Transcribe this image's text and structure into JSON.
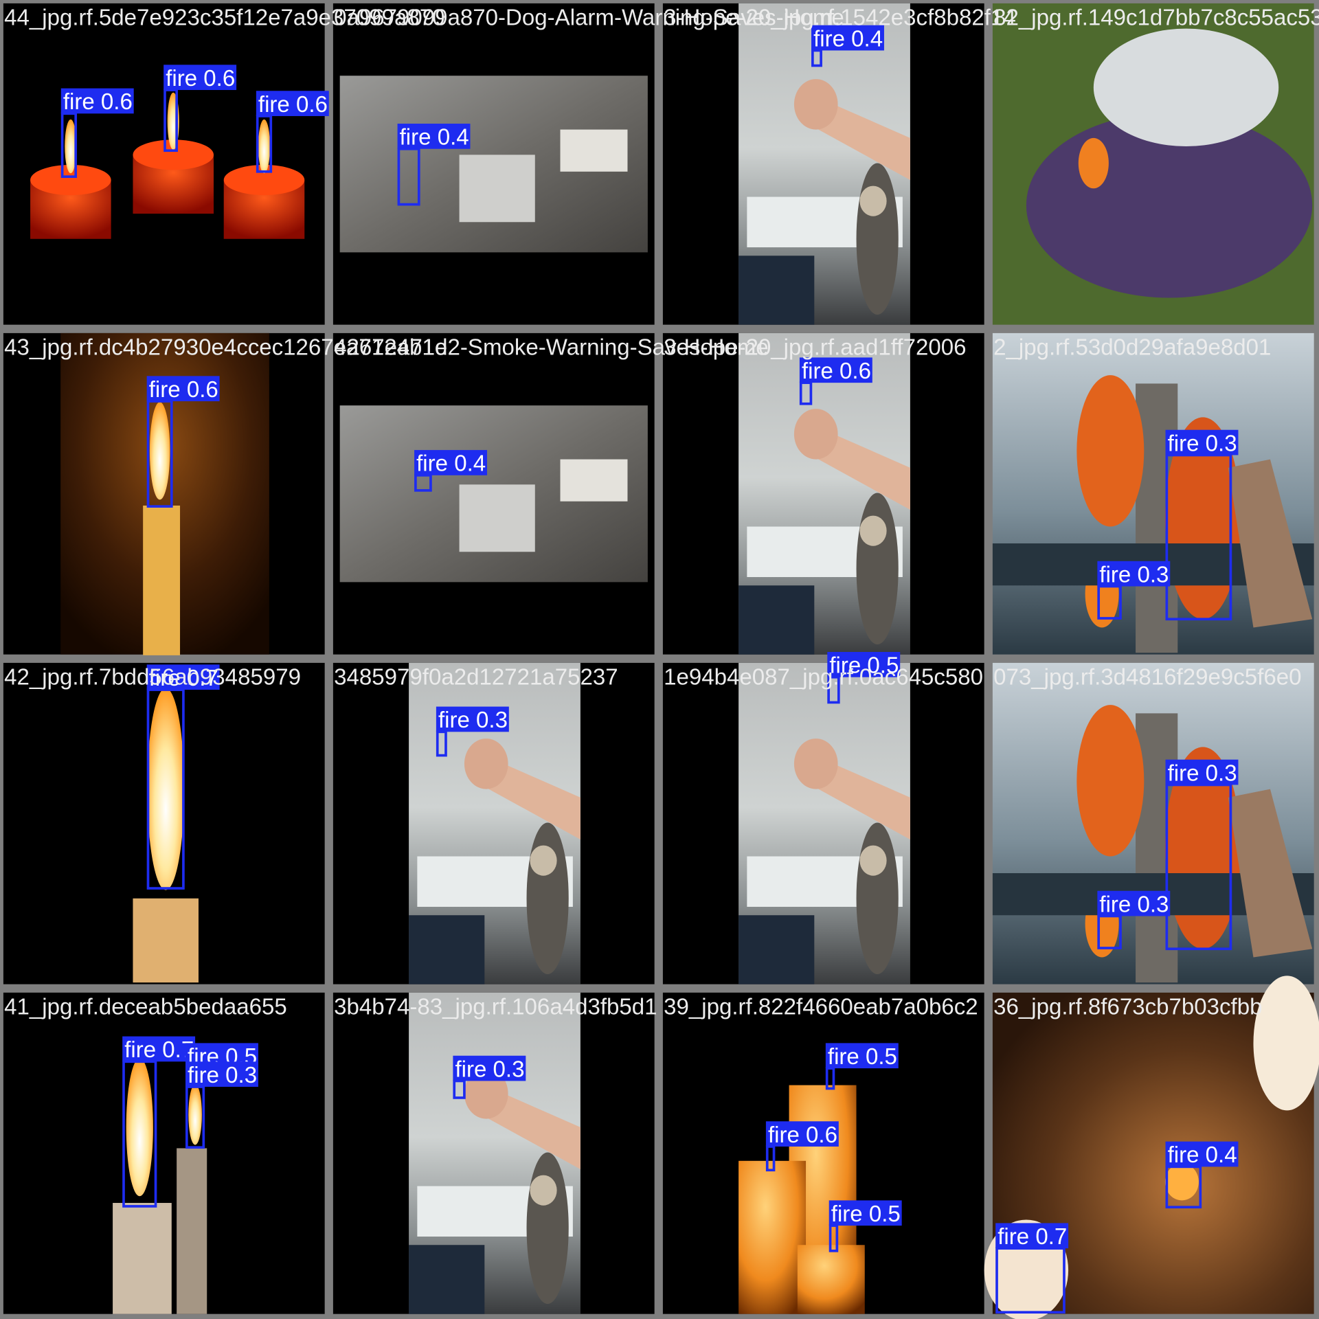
{
  "tiles": [
    {
      "filename": "44_jpg.rf.5de7e923c35f12e7a9e37099a870",
      "detections": [
        {
          "label": "fire 0.6"
        },
        {
          "label": "fire 0.6"
        },
        {
          "label": "fire 0.6"
        }
      ]
    },
    {
      "filename": "0a9679099a870-Dog-Alarm-Warning-Saves-Home",
      "detections": [
        {
          "label": "fire 0.4"
        }
      ]
    },
    {
      "filename": "3-Hope-20_jpg.rf.1542e3cf8b82f14",
      "detections": [
        {
          "label": "fire 0.4"
        }
      ]
    },
    {
      "filename": "82_jpg.rf.149c1d7bb7c8c55ac53",
      "detections": []
    },
    {
      "filename": "43_jpg.rf.dc4b27930e4ccec1267ea7124b1e",
      "detections": [
        {
          "label": "fire 0.6"
        }
      ]
    },
    {
      "filename": "4267ea71d2-Smoke-Warning-Saves-Home",
      "detections": [
        {
          "label": "fire 0.4"
        }
      ]
    },
    {
      "filename": "3-Hope-20_jpg.rf.aad1ff72006",
      "detections": [
        {
          "label": "fire 0.6"
        }
      ]
    },
    {
      "filename": "2_jpg.rf.53d0d29afa9e8d01",
      "detections": [
        {
          "label": "fire 0.3"
        },
        {
          "label": "fire 0.3"
        }
      ]
    },
    {
      "filename": "42_jpg.rf.7bdd56ab93485979",
      "detections": [
        {
          "label": "fire 0.7"
        }
      ]
    },
    {
      "filename": "3485979f0a2d12721a75237",
      "detections": [
        {
          "label": "fire 0.3"
        }
      ]
    },
    {
      "filename": "1e94b4e087_jpg.rf.0ac645c580",
      "detections": [
        {
          "label": "fire 0.5"
        }
      ]
    },
    {
      "filename": "073_jpg.rf.3d4816f29e9c5f6e0",
      "detections": [
        {
          "label": "fire 0.3"
        },
        {
          "label": "fire 0.3"
        }
      ]
    },
    {
      "filename": "41_jpg.rf.deceab5bedaa655",
      "detections": [
        {
          "label": "fire 0.7"
        },
        {
          "label": "fire 0.5"
        },
        {
          "label": "fire 0.3"
        }
      ]
    },
    {
      "filename": "3b4b74-83_jpg.rf.106a4d3fb5d1",
      "detections": [
        {
          "label": "fire 0.3"
        }
      ]
    },
    {
      "filename": "39_jpg.rf.822f4660eab7a0b6c2",
      "detections": [
        {
          "label": "fire 0.5"
        },
        {
          "label": "fire 0.6"
        },
        {
          "label": "fire 0.5"
        }
      ]
    },
    {
      "filename": "36_jpg.rf.8f673cb7b03cfbb",
      "detections": [
        {
          "label": "fire 0.4"
        },
        {
          "label": "fire 0.7"
        }
      ]
    }
  ]
}
